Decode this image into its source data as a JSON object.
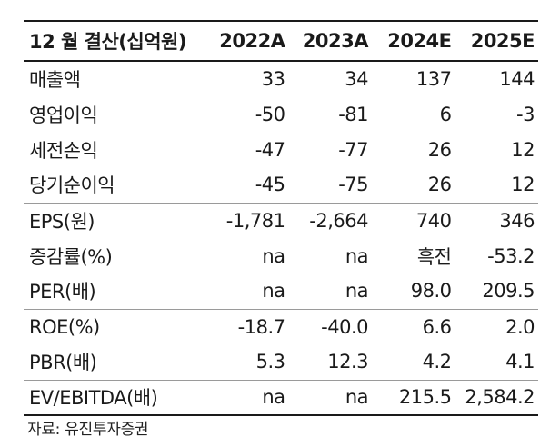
{
  "header": {
    "label": "12 월 결산(십억원)",
    "years": [
      "2022A",
      "2023A",
      "2024E",
      "2025E"
    ]
  },
  "rows": [
    {
      "label": "매출액",
      "values": [
        "33",
        "34",
        "137",
        "144"
      ]
    },
    {
      "label": "영업이익",
      "values": [
        "-50",
        "-81",
        "6",
        "-3"
      ]
    },
    {
      "label": "세전손익",
      "values": [
        "-47",
        "-77",
        "26",
        "12"
      ]
    },
    {
      "label": "당기순이익",
      "values": [
        "-45",
        "-75",
        "26",
        "12"
      ]
    },
    {
      "label": "EPS(원)",
      "values": [
        "-1,781",
        "-2,664",
        "740",
        "346"
      ]
    },
    {
      "label": "증감률(%)",
      "values": [
        "na",
        "na",
        "흑전",
        "-53.2"
      ]
    },
    {
      "label": "PER(배)",
      "values": [
        "na",
        "na",
        "98.0",
        "209.5"
      ]
    },
    {
      "label": "ROE(%)",
      "values": [
        "-18.7",
        "-40.0",
        "6.6",
        "2.0"
      ]
    },
    {
      "label": "PBR(배)",
      "values": [
        "5.3",
        "12.3",
        "4.2",
        "4.1"
      ]
    },
    {
      "label": "EV/EBITDA(배)",
      "values": [
        "na",
        "na",
        "215.5",
        "2,584.2"
      ]
    }
  ],
  "source": "자료: 유진투자증권"
}
